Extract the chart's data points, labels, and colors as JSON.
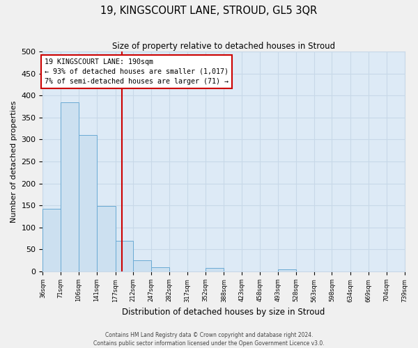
{
  "title": "19, KINGSCOURT LANE, STROUD, GL5 3QR",
  "subtitle": "Size of property relative to detached houses in Stroud",
  "xlabel": "Distribution of detached houses by size in Stroud",
  "ylabel": "Number of detached properties",
  "bar_values": [
    143,
    385,
    310,
    148,
    70,
    25,
    10,
    0,
    0,
    8,
    0,
    0,
    0,
    5,
    0,
    0,
    0,
    0,
    0,
    0
  ],
  "bin_edges": [
    36,
    71,
    106,
    141,
    177,
    212,
    247,
    282,
    317,
    352,
    388,
    423,
    458,
    493,
    528,
    563,
    598,
    634,
    669,
    704,
    739
  ],
  "bin_labels": [
    "36sqm",
    "71sqm",
    "106sqm",
    "141sqm",
    "177sqm",
    "212sqm",
    "247sqm",
    "282sqm",
    "317sqm",
    "352sqm",
    "388sqm",
    "423sqm",
    "458sqm",
    "493sqm",
    "528sqm",
    "563sqm",
    "598sqm",
    "634sqm",
    "669sqm",
    "704sqm",
    "739sqm"
  ],
  "bar_color": "#cce0f0",
  "bar_edge_color": "#6aaad4",
  "vline_x": 190,
  "vline_color": "#cc0000",
  "annotation_title": "19 KINGSCOURT LANE: 190sqm",
  "annotation_line1": "← 93% of detached houses are smaller (1,017)",
  "annotation_line2": "7% of semi-detached houses are larger (71) →",
  "annotation_box_facecolor": "#ffffff",
  "annotation_box_edgecolor": "#cc0000",
  "ylim": [
    0,
    500
  ],
  "yticks": [
    0,
    50,
    100,
    150,
    200,
    250,
    300,
    350,
    400,
    450,
    500
  ],
  "grid_color": "#c8d8e8",
  "plot_bg_color": "#ddeaf6",
  "fig_bg_color": "#f0f0f0",
  "footer_line1": "Contains HM Land Registry data © Crown copyright and database right 2024.",
  "footer_line2": "Contains public sector information licensed under the Open Government Licence v3.0."
}
